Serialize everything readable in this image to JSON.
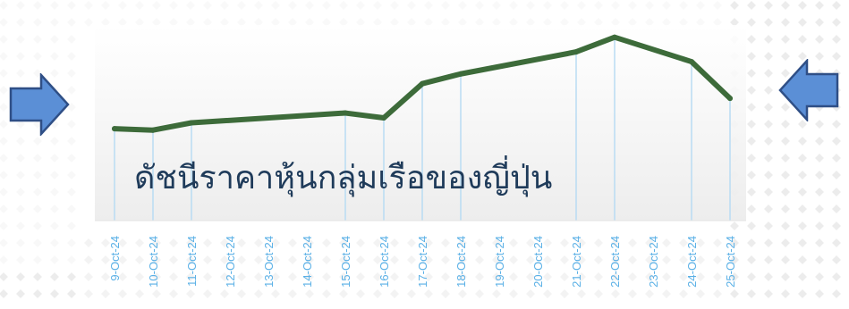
{
  "chart_data": {
    "type": "line",
    "title": "ดัชนีราคาหุ้นกลุ่มเรือของญี่ปุ่น",
    "xlabel": "",
    "ylabel": "",
    "categories": [
      "9-Oct-24",
      "10-Oct-24",
      "11-Oct-24",
      "12-Oct-24",
      "13-Oct-24",
      "14-Oct-24",
      "15-Oct-24",
      "16-Oct-24",
      "17-Oct-24",
      "18-Oct-24",
      "19-Oct-24",
      "20-Oct-24",
      "21-Oct-24",
      "22-Oct-24",
      "23-Oct-24",
      "24-Oct-24",
      "25-Oct-24"
    ],
    "x": [
      "9-Oct-24",
      "10-Oct-24",
      "11-Oct-24",
      "15-Oct-24",
      "16-Oct-24",
      "17-Oct-24",
      "18-Oct-24",
      "21-Oct-24",
      "22-Oct-24",
      "24-Oct-24",
      "25-Oct-24"
    ],
    "series": [
      {
        "values": [
          18.8,
          18.5,
          20.0,
          22.0,
          21.0,
          28.0,
          30.0,
          34.5,
          37.5,
          32.5,
          25.0
        ]
      }
    ],
    "ylim": [
      0,
      40
    ],
    "grid": "vertical drop lines at data points",
    "legend": "none",
    "colors": {
      "line": "#3d6b3a",
      "droplines": "#b9dcf3",
      "ticks": "#5ab0e6",
      "arrows": "#5b8fd6",
      "title": "#1f3b5a"
    }
  },
  "decor": {
    "left_arrow_icon": "arrow-right-icon",
    "right_arrow_icon": "arrow-left-icon"
  }
}
